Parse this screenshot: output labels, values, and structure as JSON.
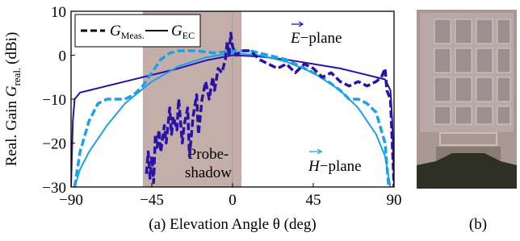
{
  "chart_data": {
    "type": "line",
    "xlabel": "(a) Elevation Angle θ (deg)",
    "ylabel": {
      "text": "Real. Gain ",
      "symbol": "G",
      "subscript": "real.",
      "unit": "(dBi)"
    },
    "panel_b_label": "(b)",
    "xlim": [
      -90,
      90
    ],
    "ylim": [
      -30,
      10
    ],
    "xticks": [
      {
        "value": -90,
        "label": "−90"
      },
      {
        "value": -45,
        "label": "−45"
      },
      0,
      45,
      90
    ],
    "yticks": [
      {
        "value": -30,
        "label": "−30"
      },
      {
        "value": -20,
        "label": "−20"
      },
      {
        "value": -10,
        "label": "−10"
      },
      0,
      10
    ],
    "legend": [
      {
        "symbol": "G",
        "subscript": "Meas.",
        "dash": true
      },
      {
        "symbol": "G",
        "subscript": "EC",
        "dash": false
      }
    ],
    "annotations": [
      {
        "symbol": "E",
        "text": "−plane",
        "color": "#2a12a8"
      },
      {
        "symbol": "H",
        "text": "−plane",
        "color": "#1ea0e6"
      }
    ],
    "shadow": {
      "xrange": [
        -50,
        5
      ],
      "color": "#c4aeaa",
      "lines": [
        "Probe-",
        "shadow"
      ]
    },
    "series": [
      {
        "color": "#2a12a8",
        "dash": false,
        "x": [
          -90,
          -89,
          -88,
          -85,
          -80,
          -70,
          -60,
          -45,
          -30,
          -15,
          0,
          15,
          30,
          45,
          60,
          70,
          80,
          85,
          88,
          89,
          90
        ],
        "values": [
          -30,
          -15,
          -10,
          -8.5,
          -8,
          -7,
          -6,
          -4.5,
          -3,
          -1.2,
          0,
          -0.3,
          -1,
          -2,
          -3,
          -4,
          -5,
          -5.5,
          -8,
          -15,
          -30
        ]
      },
      {
        "color": "#1ea0e6",
        "dash": false,
        "x": [
          -88,
          -85,
          -80,
          -70,
          -60,
          -45,
          -30,
          -15,
          0,
          15,
          30,
          45,
          60,
          70,
          80,
          85,
          88
        ],
        "values": [
          -30,
          -26,
          -22,
          -16,
          -11,
          -6,
          -2.5,
          -0.5,
          0.5,
          0,
          -1.5,
          -4,
          -8,
          -12,
          -18,
          -23,
          -30
        ]
      },
      {
        "color": "#1ea0e6",
        "dash": true,
        "x": [
          -88,
          -85,
          -80,
          -75,
          -70,
          -65,
          -60,
          -55,
          -50,
          -45,
          -40,
          -35,
          -30,
          -20,
          -10,
          0,
          10,
          20,
          30,
          40,
          50,
          60,
          65,
          70,
          75,
          80,
          85,
          87
        ],
        "values": [
          -30,
          -22,
          -15,
          -11,
          -10,
          -10,
          -10,
          -9,
          -7,
          -4,
          -1,
          0.5,
          1,
          1,
          0.5,
          1,
          1,
          0,
          -1,
          -3,
          -5,
          -8,
          -10,
          -10,
          -11,
          -13,
          -20,
          -30
        ]
      },
      {
        "color": "#2a12a8",
        "dash": true,
        "x": [
          -48,
          -47,
          -46,
          -45,
          -44,
          -43,
          -42,
          -41,
          -40,
          -38,
          -37,
          -35,
          -34,
          -33,
          -31,
          -30,
          -28,
          -27,
          -25,
          -24,
          -22,
          -20,
          -19,
          -17,
          -15,
          -13,
          -11,
          -10,
          -8,
          -6,
          -4,
          -3,
          -2,
          -1,
          0,
          2,
          5,
          10,
          15,
          20,
          25,
          30,
          35,
          40,
          45,
          50,
          55,
          60,
          65,
          70,
          75,
          80,
          83,
          85,
          86,
          88,
          89,
          90
        ],
        "values": [
          -27,
          -22,
          -28,
          -23,
          -29,
          -18,
          -21,
          -17,
          -22,
          -16,
          -20,
          -12,
          -18,
          -14,
          -17,
          -10,
          -20,
          -16,
          -12,
          -23,
          -14,
          -9,
          -18,
          -10,
          -6,
          -10,
          -5,
          -8,
          -3,
          -4,
          -1,
          3,
          0,
          5,
          2,
          0,
          1,
          1,
          -1,
          -2,
          -3,
          -2,
          -4,
          -2,
          -3,
          -5,
          -4,
          -6,
          -7,
          -6,
          -7,
          -6,
          -5,
          -3,
          -8,
          -10,
          -20,
          -30
        ]
      }
    ]
  }
}
